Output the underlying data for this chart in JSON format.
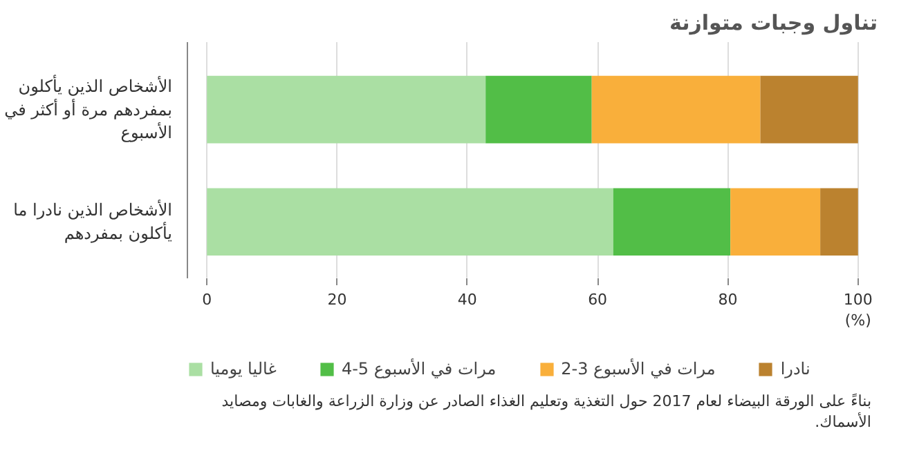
{
  "chart_data": {
    "type": "bar",
    "orientation": "horizontal",
    "stacked": true,
    "title": "تناول وجبات متوازنة",
    "categories": [
      "الأشخاص الذين يأكلون بمفردهم مرة أو أكثر في الأسبوع",
      "الأشخاص الذين نادرا ما يأكلون بمفردهم"
    ],
    "series": [
      {
        "name": "غاليا يوميا",
        "color": "#aadfa3",
        "values": [
          42.8,
          62.4
        ]
      },
      {
        "name": "4-5 مرات في الأسبوع",
        "color": "#52be47",
        "values": [
          16.3,
          18.0
        ]
      },
      {
        "name": "2-3 مرات في الأسبوع",
        "color": "#f9af3b",
        "values": [
          25.9,
          13.8
        ]
      },
      {
        "name": "نادرا",
        "color": "#bb822f",
        "values": [
          15.0,
          5.8
        ]
      }
    ],
    "xlim": [
      0,
      100
    ],
    "xticks": [
      0,
      20,
      40,
      60,
      80,
      100
    ],
    "xlabel": "(%)",
    "grid": "x",
    "legend": "bottom",
    "annotations": [
      "بناءً على الورقة البيضاء لعام 2017 حول التغذية وتعليم الغذاء الصادر عن وزارة الزراعة والغابات ومصايد الأسماك."
    ]
  }
}
